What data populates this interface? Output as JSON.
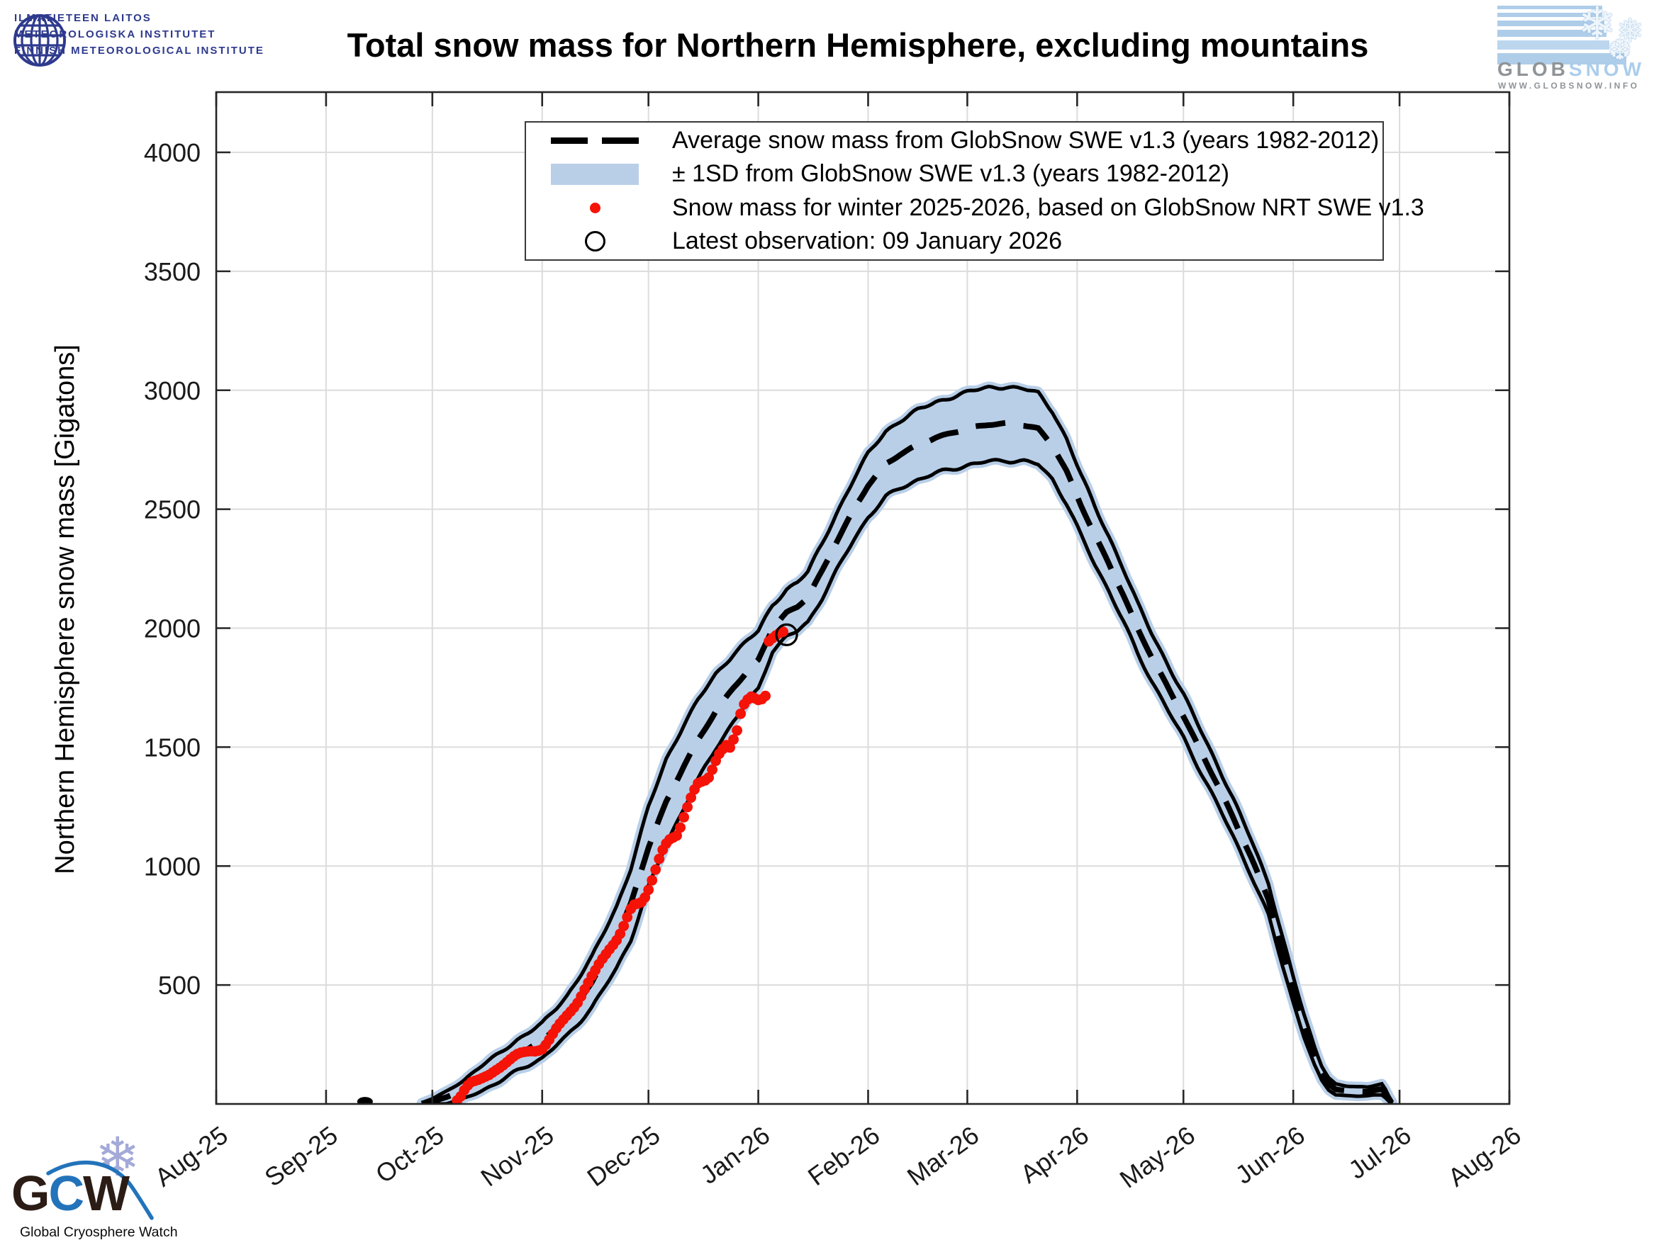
{
  "header": {
    "fmi_logo_lines": [
      "ILMATIETEEN LAITOS",
      "METEOROLOGISKA INSTITUTET",
      "FINNISH METEOROLOGICAL INSTITUTE"
    ],
    "globsnow": {
      "wordmark_gray": "GLOB",
      "wordmark_blue": "SNOW",
      "url": "WWW.GLOBSNOW.INFO"
    }
  },
  "footer": {
    "gcw_g": "G",
    "gcw_c": "C",
    "gcw_w": "W",
    "gcw_subtitle": "Global Cryosphere Watch"
  },
  "chart_data": {
    "type": "line",
    "title": "Total snow mass for Northern Hemisphere, excluding mountains",
    "xlabel": "",
    "ylabel": "Northern Hemisphere snow mass [Gigatons]",
    "ylim": [
      0,
      4250
    ],
    "yticks": [
      500,
      1000,
      1500,
      2000,
      2500,
      3000,
      3500,
      4000
    ],
    "grid": true,
    "legend_position": "upper center",
    "colors": {
      "band": "#b9cfe8",
      "mean_line": "#000000",
      "observation": "#f51207",
      "grid": "#dcdcdc",
      "axis": "#262626"
    },
    "xticks_month_day": [
      [
        "Aug-25",
        0
      ],
      [
        "Sep-25",
        31
      ],
      [
        "Oct-25",
        61
      ],
      [
        "Nov-25",
        92
      ],
      [
        "Dec-25",
        122
      ],
      [
        "Jan-26",
        153
      ],
      [
        "Feb-26",
        184
      ],
      [
        "Mar-26",
        212
      ],
      [
        "Apr-26",
        243
      ],
      [
        "May-26",
        273
      ],
      [
        "Jun-26",
        304
      ],
      [
        "Jul-26",
        334
      ],
      [
        "Aug-26",
        365
      ]
    ],
    "x_axis_span_days": 365,
    "legend": [
      {
        "key": "mean",
        "label": "Average snow mass from GlobSnow SWE v1.3 (years 1982-2012)"
      },
      {
        "key": "band",
        "label": "± 1SD from GlobSnow SWE v1.3 (years 1982-2012)"
      },
      {
        "key": "obs",
        "label": "Snow mass for winter 2025-2026, based on GlobSnow NRT SWE v1.3"
      },
      {
        "key": "latest",
        "label": "Latest observation: 09 January 2026"
      }
    ],
    "climatology_mean_and_1sd_anchors_day_mean_halfwidth": [
      [
        58,
        2,
        2
      ],
      [
        61,
        10,
        12
      ],
      [
        65,
        28,
        25
      ],
      [
        70,
        62,
        40
      ],
      [
        75,
        108,
        52
      ],
      [
        80,
        155,
        60
      ],
      [
        85,
        205,
        65
      ],
      [
        92,
        265,
        72
      ],
      [
        99,
        370,
        85
      ],
      [
        106,
        510,
        105
      ],
      [
        113,
        700,
        130
      ],
      [
        117,
        840,
        150
      ],
      [
        122,
        1080,
        168
      ],
      [
        127,
        1270,
        178
      ],
      [
        132,
        1420,
        175
      ],
      [
        136,
        1530,
        168
      ],
      [
        141,
        1650,
        155
      ],
      [
        146,
        1750,
        142
      ],
      [
        150,
        1820,
        130
      ],
      [
        153,
        1865,
        122
      ],
      [
        157,
        2000,
        95
      ],
      [
        161,
        2065,
        100
      ],
      [
        164,
        2090,
        103
      ],
      [
        167,
        2130,
        107
      ],
      [
        171,
        2240,
        113
      ],
      [
        175,
        2360,
        120
      ],
      [
        180,
        2500,
        128
      ],
      [
        184,
        2600,
        133
      ],
      [
        189,
        2690,
        138
      ],
      [
        193,
        2730,
        142
      ],
      [
        198,
        2770,
        146
      ],
      [
        203,
        2800,
        149
      ],
      [
        208,
        2822,
        152
      ],
      [
        213,
        2842,
        154
      ],
      [
        218,
        2856,
        155
      ],
      [
        223,
        2860,
        155
      ],
      [
        228,
        2853,
        152
      ],
      [
        232,
        2838,
        149
      ],
      [
        236,
        2770,
        143
      ],
      [
        240,
        2660,
        136
      ],
      [
        244,
        2520,
        128
      ],
      [
        248,
        2390,
        121
      ],
      [
        252,
        2270,
        115
      ],
      [
        256,
        2140,
        110
      ],
      [
        260,
        2000,
        105
      ],
      [
        264,
        1880,
        100
      ],
      [
        269,
        1740,
        95
      ],
      [
        273,
        1630,
        91
      ],
      [
        278,
        1480,
        87
      ],
      [
        283,
        1330,
        83
      ],
      [
        287,
        1205,
        79
      ],
      [
        292,
        1040,
        74
      ],
      [
        297,
        860,
        68
      ],
      [
        301,
        640,
        60
      ],
      [
        304,
        480,
        54
      ],
      [
        307,
        330,
        46
      ],
      [
        310,
        200,
        38
      ],
      [
        312,
        130,
        32
      ],
      [
        314,
        85,
        26
      ],
      [
        316,
        62,
        22
      ],
      [
        319,
        55,
        20
      ],
      [
        322,
        52,
        19
      ],
      [
        325,
        52,
        19
      ],
      [
        327,
        58,
        21
      ],
      [
        329,
        62,
        23
      ],
      [
        330,
        45,
        17
      ],
      [
        331,
        22,
        10
      ],
      [
        332,
        5,
        3
      ]
    ],
    "isolated_average_dot_day_value": [
      42,
      4
    ],
    "winter_2025_2026_observations_day_value": [
      [
        68,
        15
      ],
      [
        69,
        32
      ],
      [
        70,
        58
      ],
      [
        71,
        78
      ],
      [
        72,
        92
      ],
      [
        73,
        97
      ],
      [
        74,
        102
      ],
      [
        75,
        108
      ],
      [
        76,
        115
      ],
      [
        77,
        122
      ],
      [
        78,
        132
      ],
      [
        79,
        142
      ],
      [
        80,
        152
      ],
      [
        81,
        163
      ],
      [
        82,
        175
      ],
      [
        83,
        188
      ],
      [
        84,
        200
      ],
      [
        85,
        210
      ],
      [
        86,
        216
      ],
      [
        87,
        219
      ],
      [
        88,
        221
      ],
      [
        89,
        222
      ],
      [
        90,
        221
      ],
      [
        91,
        224
      ],
      [
        92,
        230
      ],
      [
        93,
        248
      ],
      [
        94,
        270
      ],
      [
        95,
        295
      ],
      [
        96,
        318
      ],
      [
        97,
        338
      ],
      [
        98,
        355
      ],
      [
        99,
        372
      ],
      [
        100,
        388
      ],
      [
        101,
        405
      ],
      [
        102,
        425
      ],
      [
        103,
        452
      ],
      [
        104,
        482
      ],
      [
        105,
        510
      ],
      [
        106,
        538
      ],
      [
        107,
        562
      ],
      [
        108,
        588
      ],
      [
        109,
        610
      ],
      [
        110,
        630
      ],
      [
        111,
        650
      ],
      [
        112,
        668
      ],
      [
        113,
        688
      ],
      [
        114,
        715
      ],
      [
        115,
        748
      ],
      [
        116,
        785
      ],
      [
        117,
        820
      ],
      [
        118,
        838
      ],
      [
        119,
        842
      ],
      [
        120,
        848
      ],
      [
        121,
        868
      ],
      [
        122,
        900
      ],
      [
        123,
        940
      ],
      [
        124,
        985
      ],
      [
        125,
        1030
      ],
      [
        126,
        1068
      ],
      [
        127,
        1095
      ],
      [
        128,
        1112
      ],
      [
        129,
        1120
      ],
      [
        130,
        1128
      ],
      [
        131,
        1162
      ],
      [
        132,
        1205
      ],
      [
        133,
        1248
      ],
      [
        134,
        1288
      ],
      [
        135,
        1322
      ],
      [
        136,
        1348
      ],
      [
        137,
        1355
      ],
      [
        138,
        1360
      ],
      [
        139,
        1372
      ],
      [
        140,
        1405
      ],
      [
        141,
        1442
      ],
      [
        142,
        1472
      ],
      [
        143,
        1492
      ],
      [
        144,
        1508
      ],
      [
        145,
        1498
      ],
      [
        146,
        1532
      ],
      [
        147,
        1570
      ],
      [
        148,
        1640
      ],
      [
        149,
        1680
      ],
      [
        150,
        1700
      ],
      [
        151,
        1712
      ],
      [
        152,
        1705
      ],
      [
        153,
        1698
      ],
      [
        154,
        1702
      ],
      [
        155,
        1715
      ],
      [
        156,
        1945
      ],
      [
        157,
        1958
      ],
      [
        158,
        1970
      ],
      [
        159,
        1980
      ],
      [
        160,
        1985
      ]
    ],
    "latest_observation": {
      "day": 161,
      "value": 1972,
      "date_label": "09 January 2026"
    }
  }
}
